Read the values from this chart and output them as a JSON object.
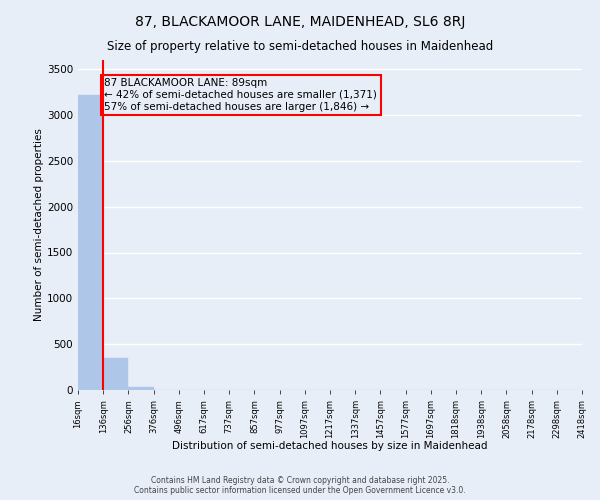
{
  "title": "87, BLACKAMOOR LANE, MAIDENHEAD, SL6 8RJ",
  "subtitle": "Size of property relative to semi-detached houses in Maidenhead",
  "xlabel": "Distribution of semi-detached houses by size in Maidenhead",
  "ylabel": "Number of semi-detached properties",
  "bar_values": [
    3217,
    350,
    30,
    5,
    2,
    1,
    1,
    0,
    0,
    0,
    0,
    0,
    0,
    0,
    0,
    0,
    0,
    0,
    0,
    0
  ],
  "bar_color": "#aec6e8",
  "bar_edge_color": "#aec6e8",
  "x_labels": [
    "16sqm",
    "136sqm",
    "256sqm",
    "376sqm",
    "496sqm",
    "617sqm",
    "737sqm",
    "857sqm",
    "977sqm",
    "1097sqm",
    "1217sqm",
    "1337sqm",
    "1457sqm",
    "1577sqm",
    "1697sqm",
    "1818sqm",
    "1938sqm",
    "2058sqm",
    "2178sqm",
    "2298sqm",
    "2418sqm"
  ],
  "ylim": [
    0,
    3600
  ],
  "yticks": [
    0,
    500,
    1000,
    1500,
    2000,
    2500,
    3000,
    3500
  ],
  "red_line_x": 0.5,
  "annotation_text": "87 BLACKAMOOR LANE: 89sqm\n← 42% of semi-detached houses are smaller (1,371)\n57% of semi-detached houses are larger (1,846) →",
  "bg_color": "#e8eef7",
  "grid_color": "#ffffff",
  "footer": "Contains HM Land Registry data © Crown copyright and database right 2025.\nContains public sector information licensed under the Open Government Licence v3.0.",
  "title_fontsize": 10,
  "subtitle_fontsize": 8.5,
  "footer_fontsize": 5.5
}
